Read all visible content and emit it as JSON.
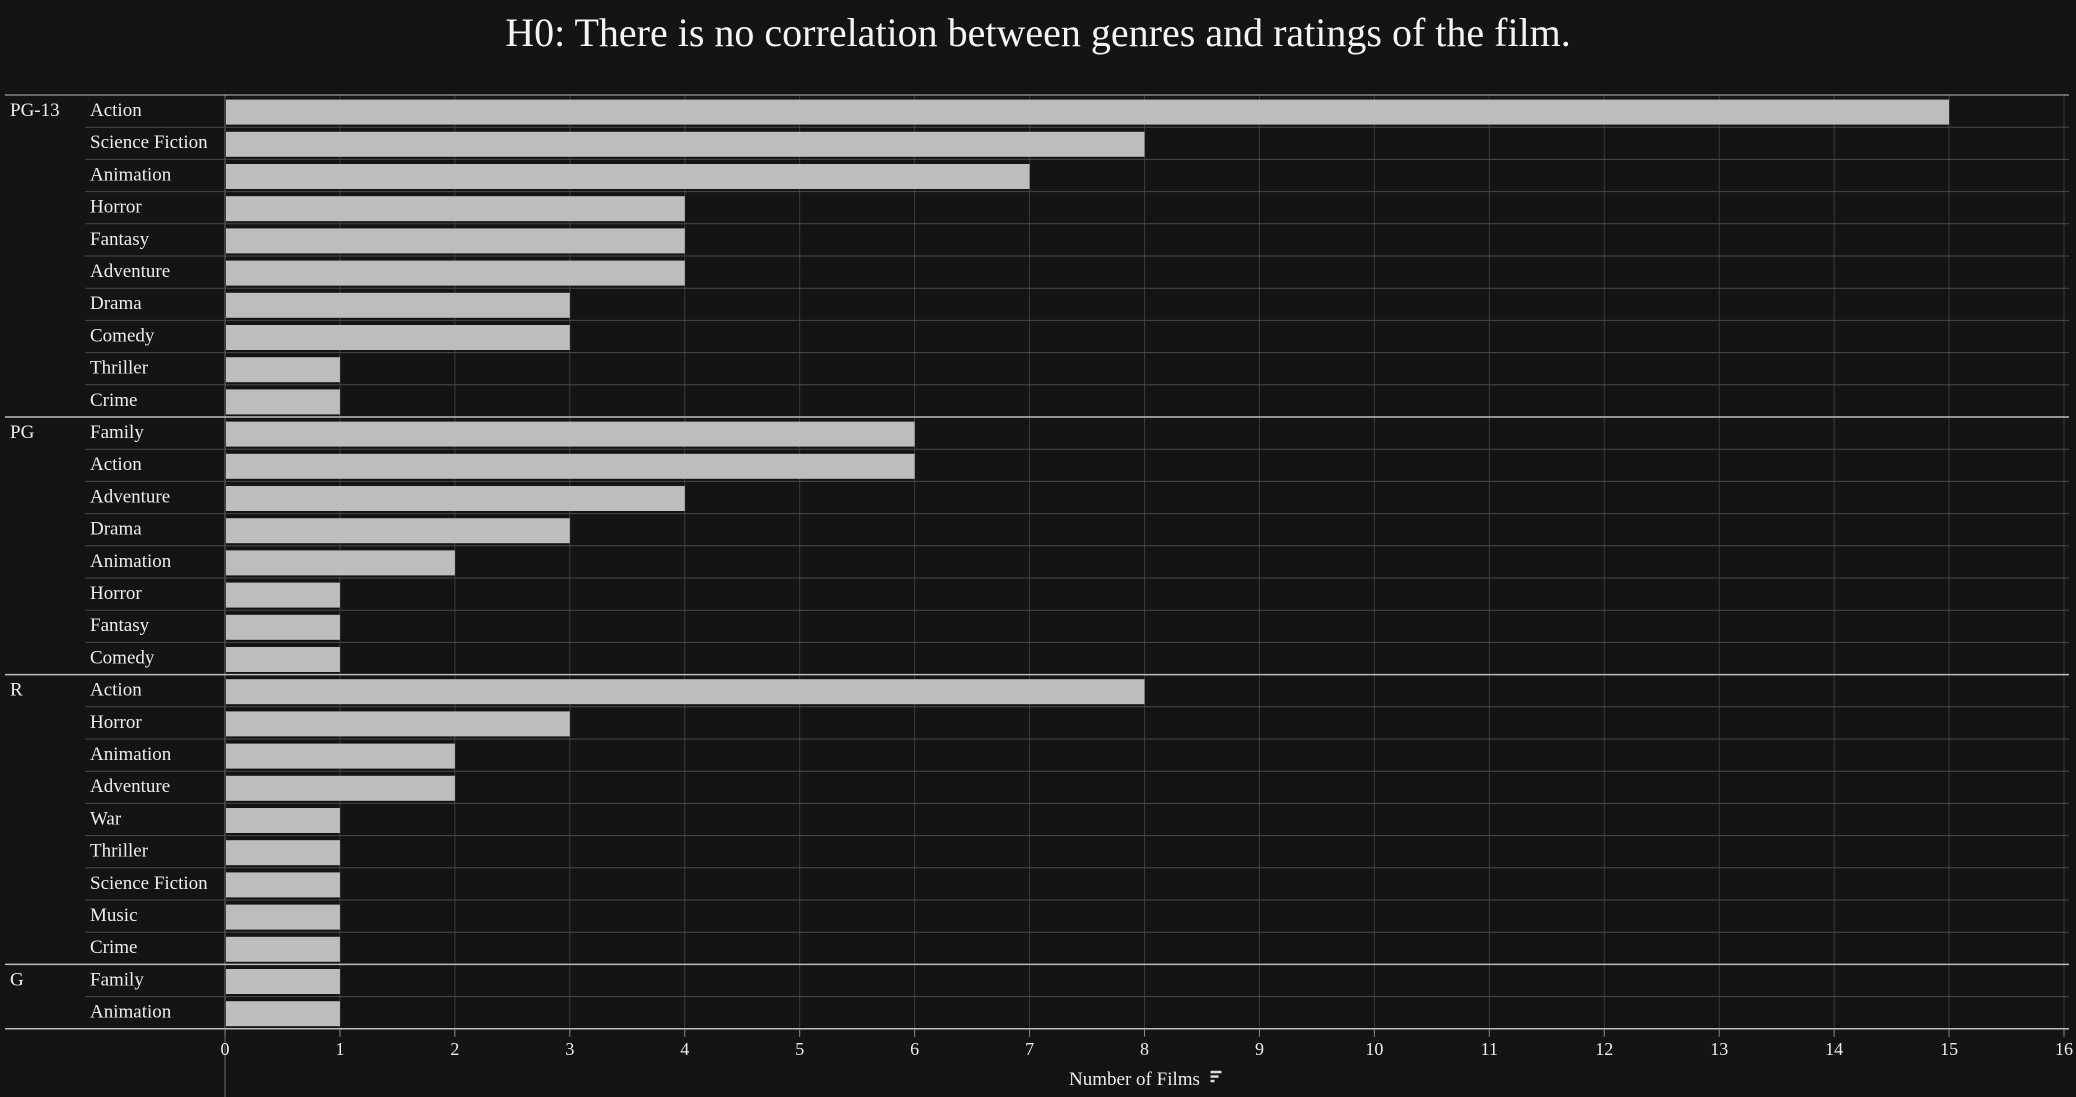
{
  "chart_data": {
    "type": "bar",
    "orientation": "horizontal",
    "title": "H0: There is no correlation between genres and ratings of the film.",
    "xlabel": "Number of Films",
    "xlim": [
      0,
      16
    ],
    "xticks": [
      0,
      1,
      2,
      3,
      4,
      5,
      6,
      7,
      8,
      9,
      10,
      11,
      12,
      13,
      14,
      15,
      16
    ],
    "grid": true,
    "bar_color": "#bdbdbd",
    "groups": [
      {
        "rating": "PG-13",
        "rows": [
          {
            "genre": "Action",
            "value": 15
          },
          {
            "genre": "Science Fiction",
            "value": 8
          },
          {
            "genre": "Animation",
            "value": 7
          },
          {
            "genre": "Horror",
            "value": 4
          },
          {
            "genre": "Fantasy",
            "value": 4
          },
          {
            "genre": "Adventure",
            "value": 4
          },
          {
            "genre": "Drama",
            "value": 3
          },
          {
            "genre": "Comedy",
            "value": 3
          },
          {
            "genre": "Thriller",
            "value": 1
          },
          {
            "genre": "Crime",
            "value": 1
          }
        ]
      },
      {
        "rating": "PG",
        "rows": [
          {
            "genre": "Family",
            "value": 6
          },
          {
            "genre": "Action",
            "value": 6
          },
          {
            "genre": "Adventure",
            "value": 4
          },
          {
            "genre": "Drama",
            "value": 3
          },
          {
            "genre": "Animation",
            "value": 2
          },
          {
            "genre": "Horror",
            "value": 1
          },
          {
            "genre": "Fantasy",
            "value": 1
          },
          {
            "genre": "Comedy",
            "value": 1
          }
        ]
      },
      {
        "rating": "R",
        "rows": [
          {
            "genre": "Action",
            "value": 8
          },
          {
            "genre": "Horror",
            "value": 3
          },
          {
            "genre": "Animation",
            "value": 2
          },
          {
            "genre": "Adventure",
            "value": 2
          },
          {
            "genre": "War",
            "value": 1
          },
          {
            "genre": "Thriller",
            "value": 1
          },
          {
            "genre": "Science Fiction",
            "value": 1
          },
          {
            "genre": "Music",
            "value": 1
          },
          {
            "genre": "Crime",
            "value": 1
          }
        ]
      },
      {
        "rating": "G",
        "rows": [
          {
            "genre": "Family",
            "value": 1
          },
          {
            "genre": "Animation",
            "value": 1
          }
        ]
      }
    ]
  }
}
